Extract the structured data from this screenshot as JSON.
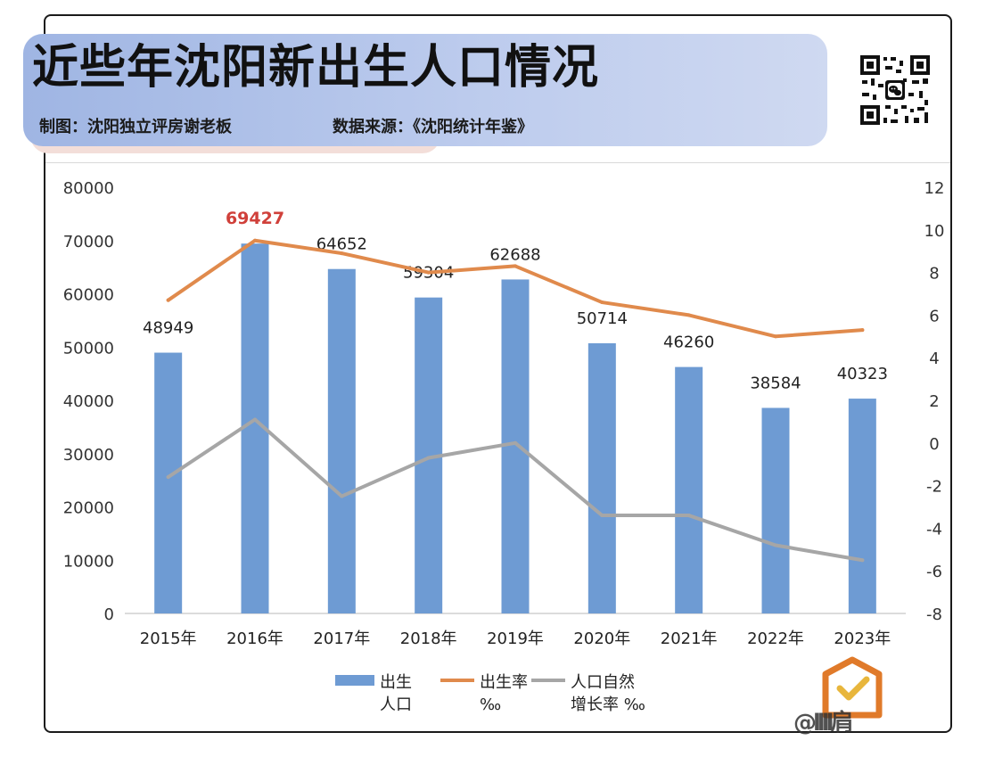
{
  "header": {
    "title": "近些年沈阳新出生人口情况",
    "credit": "制图：沈阳独立评房谢老板",
    "source": "数据来源：《沈阳统计年鉴》"
  },
  "icons": {
    "qr": "qr-code-icon",
    "badge": "check-badge-icon"
  },
  "watermark": "@llll肩",
  "chart_data": {
    "type": "bar",
    "categories": [
      "2015年",
      "2016年",
      "2017年",
      "2018年",
      "2019年",
      "2020年",
      "2021年",
      "2022年",
      "2023年"
    ],
    "series": [
      {
        "name": "出生人口",
        "legend_lines": [
          "出生",
          "人口"
        ],
        "type": "bar",
        "axis": "left",
        "color": "#6e9bd3",
        "values": [
          48949,
          69427,
          64652,
          59304,
          62688,
          50714,
          46260,
          38584,
          40323
        ]
      },
      {
        "name": "出生率‰",
        "legend_lines": [
          "出生率",
          "‰"
        ],
        "type": "line",
        "axis": "right",
        "color": "#e08a4c",
        "values": [
          6.7,
          9.5,
          8.9,
          8.0,
          8.3,
          6.6,
          6.0,
          5.0,
          5.3
        ]
      },
      {
        "name": "人口自然增长率‰",
        "legend_lines": [
          "人口自然",
          "增长率 ‰"
        ],
        "type": "line",
        "axis": "right",
        "color": "#a6a6a6",
        "values": [
          -1.6,
          1.1,
          -2.5,
          -0.7,
          0.0,
          -3.4,
          -3.4,
          -4.8,
          -5.5
        ]
      }
    ],
    "highlight": {
      "index": 1,
      "color": "#d0403a"
    },
    "ylim_left": [
      0,
      80000
    ],
    "yticks_left": [
      "0",
      "10000",
      "20000",
      "30000",
      "40000",
      "50000",
      "60000",
      "70000",
      "80000"
    ],
    "ylim_right": [
      -8,
      12
    ],
    "yticks_right": [
      "-8",
      "-6",
      "-4",
      "-2",
      "0",
      "2",
      "4",
      "6",
      "8",
      "10",
      "12"
    ],
    "grid": false,
    "legend_position": "bottom-center"
  }
}
